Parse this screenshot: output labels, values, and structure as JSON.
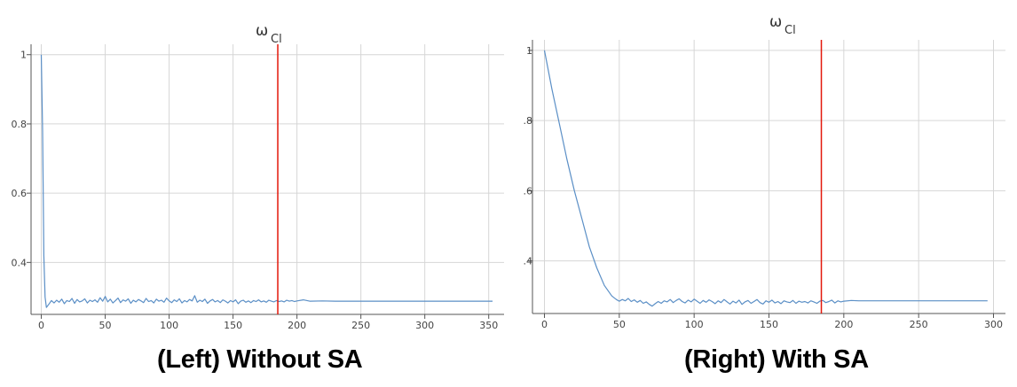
{
  "captions": {
    "left": "(Left) Without SA",
    "right": "(Right) With SA"
  },
  "colors": {
    "series": "#5b8fc6",
    "marker": "#e3170a",
    "grid": "#d6d6d6",
    "axis": "#555555"
  },
  "chart_data": [
    {
      "type": "line",
      "title": "ω",
      "title_subscript": "Cl",
      "xlim": [
        -8,
        362
      ],
      "ylim": [
        0.25,
        1.03
      ],
      "xticks": [
        0,
        50,
        100,
        150,
        200,
        250,
        300,
        350
      ],
      "yticks": [
        0.4,
        0.6,
        0.8,
        1
      ],
      "ytick_labels": [
        "0.4",
        "0.6",
        "0.8",
        "1"
      ],
      "grid": true,
      "vline_x": 185,
      "series": [
        {
          "x": [
            0,
            1,
            2,
            3,
            4,
            6,
            8,
            10,
            12,
            14,
            16,
            18,
            20,
            22,
            24,
            26,
            28,
            30,
            32,
            34,
            36,
            38,
            40,
            42,
            44,
            46,
            48,
            50,
            52,
            54,
            56,
            58,
            60,
            62,
            64,
            66,
            68,
            70,
            72,
            74,
            76,
            78,
            80,
            82,
            84,
            86,
            88,
            90,
            92,
            94,
            96,
            98,
            100,
            102,
            104,
            106,
            108,
            110,
            112,
            114,
            116,
            118,
            120,
            122,
            124,
            126,
            128,
            130,
            132,
            134,
            136,
            138,
            140,
            142,
            144,
            146,
            148,
            150,
            152,
            154,
            156,
            158,
            160,
            162,
            164,
            166,
            168,
            170,
            172,
            174,
            176,
            178,
            180,
            182,
            184,
            186,
            188,
            190,
            192,
            194,
            196,
            198,
            200,
            205,
            210,
            220,
            230,
            240,
            250,
            260,
            270,
            280,
            290,
            300,
            310,
            320,
            330,
            340,
            353
          ],
          "y": [
            1.0,
            0.78,
            0.42,
            0.3,
            0.27,
            0.28,
            0.29,
            0.283,
            0.291,
            0.285,
            0.294,
            0.281,
            0.29,
            0.287,
            0.296,
            0.282,
            0.293,
            0.286,
            0.289,
            0.295,
            0.283,
            0.291,
            0.287,
            0.292,
            0.285,
            0.298,
            0.288,
            0.302,
            0.286,
            0.294,
            0.283,
            0.29,
            0.297,
            0.284,
            0.292,
            0.288,
            0.295,
            0.282,
            0.291,
            0.286,
            0.293,
            0.289,
            0.284,
            0.296,
            0.287,
            0.29,
            0.283,
            0.294,
            0.288,
            0.291,
            0.285,
            0.297,
            0.289,
            0.284,
            0.292,
            0.287,
            0.295,
            0.283,
            0.29,
            0.286,
            0.293,
            0.289,
            0.304,
            0.285,
            0.291,
            0.287,
            0.294,
            0.282,
            0.289,
            0.293,
            0.286,
            0.29,
            0.284,
            0.292,
            0.288,
            0.283,
            0.29,
            0.286,
            0.292,
            0.281,
            0.288,
            0.291,
            0.285,
            0.289,
            0.284,
            0.29,
            0.287,
            0.292,
            0.286,
            0.289,
            0.285,
            0.291,
            0.288,
            0.286,
            0.29,
            0.287,
            0.289,
            0.286,
            0.291,
            0.288,
            0.29,
            0.287,
            0.289,
            0.292,
            0.288,
            0.289,
            0.288,
            0.288,
            0.288,
            0.288,
            0.288,
            0.288,
            0.288,
            0.288,
            0.288,
            0.288,
            0.288,
            0.288,
            0.288
          ]
        }
      ]
    },
    {
      "type": "line",
      "title": "ω",
      "title_subscript": "Cl",
      "xlim": [
        -8,
        308
      ],
      "ylim": [
        0.25,
        1.03
      ],
      "xticks": [
        0,
        50,
        100,
        150,
        200,
        250,
        300
      ],
      "yticks": [
        0.4,
        0.6,
        0.8,
        1
      ],
      "ytick_labels": [
        ".4",
        ".6",
        ".8",
        "1"
      ],
      "grid": true,
      "vline_x": 185,
      "series": [
        {
          "x": [
            0,
            5,
            10,
            15,
            20,
            25,
            30,
            35,
            40,
            45,
            48,
            50,
            52,
            54,
            56,
            58,
            60,
            62,
            64,
            66,
            68,
            70,
            72,
            74,
            76,
            78,
            80,
            82,
            84,
            86,
            88,
            90,
            92,
            94,
            96,
            98,
            100,
            102,
            104,
            106,
            108,
            110,
            112,
            114,
            116,
            118,
            120,
            122,
            124,
            126,
            128,
            130,
            132,
            134,
            136,
            138,
            140,
            142,
            144,
            146,
            148,
            150,
            152,
            154,
            156,
            158,
            160,
            162,
            164,
            166,
            168,
            170,
            172,
            174,
            176,
            178,
            180,
            182,
            184,
            186,
            188,
            190,
            192,
            194,
            196,
            198,
            200,
            205,
            210,
            220,
            230,
            240,
            250,
            260,
            270,
            280,
            296
          ],
          "y": [
            1.0,
            0.89,
            0.79,
            0.69,
            0.6,
            0.52,
            0.44,
            0.38,
            0.33,
            0.3,
            0.29,
            0.285,
            0.29,
            0.286,
            0.293,
            0.284,
            0.289,
            0.282,
            0.287,
            0.279,
            0.283,
            0.276,
            0.271,
            0.278,
            0.284,
            0.279,
            0.286,
            0.283,
            0.29,
            0.281,
            0.287,
            0.292,
            0.284,
            0.28,
            0.288,
            0.283,
            0.291,
            0.285,
            0.279,
            0.287,
            0.282,
            0.289,
            0.284,
            0.278,
            0.286,
            0.281,
            0.29,
            0.283,
            0.277,
            0.285,
            0.28,
            0.288,
            0.276,
            0.283,
            0.287,
            0.279,
            0.284,
            0.29,
            0.281,
            0.277,
            0.286,
            0.282,
            0.288,
            0.28,
            0.284,
            0.278,
            0.286,
            0.283,
            0.281,
            0.287,
            0.279,
            0.285,
            0.282,
            0.284,
            0.28,
            0.286,
            0.283,
            0.279,
            0.285,
            0.287,
            0.281,
            0.284,
            0.288,
            0.28,
            0.286,
            0.283,
            0.285,
            0.287,
            0.286,
            0.286,
            0.286,
            0.286,
            0.286,
            0.286,
            0.286,
            0.286,
            0.286
          ]
        }
      ]
    }
  ]
}
